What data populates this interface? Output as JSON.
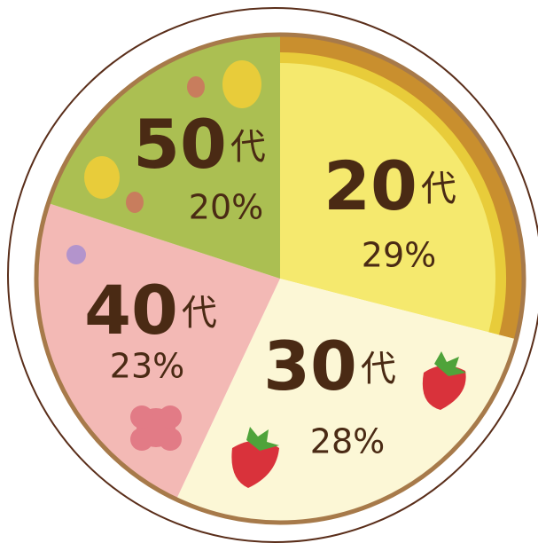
{
  "chart_data": {
    "type": "pie",
    "categories": [
      "20代",
      "30代",
      "40代",
      "50代"
    ],
    "values": [
      29,
      28,
      23,
      20
    ],
    "value_labels": [
      "29%",
      "28%",
      "23%",
      "20%"
    ],
    "colors": [
      "#f5e96e",
      "#fcf7d6",
      "#f3b9b5",
      "#abbf52"
    ]
  }
}
